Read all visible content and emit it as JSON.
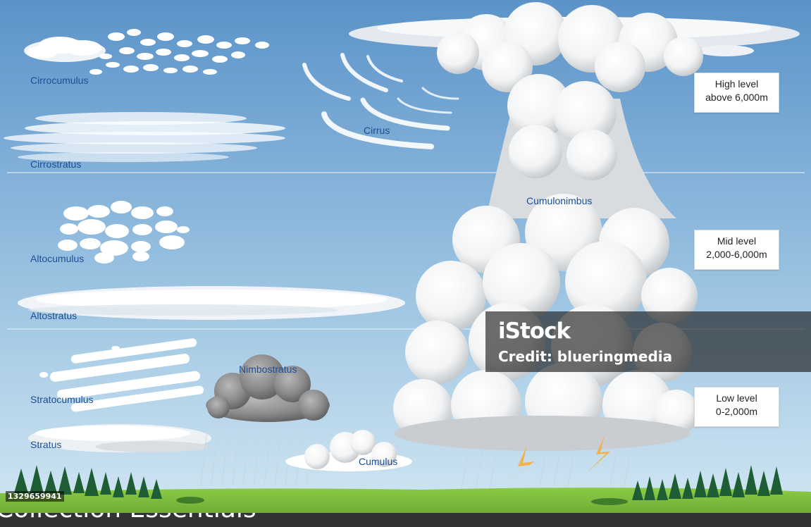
{
  "cloud_labels": {
    "cirrocumulus": "Cirrocumulus",
    "cirrostratus": "Cirrostratus",
    "cirrus": "Cirrus",
    "cumulonimbus": "Cumulonimbus",
    "altocumulus": "Altocumulus",
    "altostratus": "Altostratus",
    "nimbostratus": "Nimbostratus",
    "stratocumulus": "Stratocumulus",
    "stratus": "Stratus",
    "cumulus": "Cumulus"
  },
  "levels": {
    "high": {
      "line1": "High level",
      "line2": "above 6,000m"
    },
    "mid": {
      "line1": "Mid level",
      "line2": "2,000-6,000m"
    },
    "low": {
      "line1": "Low level",
      "line2": "0-2,000m"
    }
  },
  "watermark": {
    "logo": "iStock",
    "credit": "Credit: blueringmedia"
  },
  "image_id": "1329659941",
  "collection_text": "Collection Essentials",
  "colors": {
    "sky_top": "#5b93c9",
    "sky_bottom": "#d2e6f2",
    "label_text": "#1d4f93",
    "cloud_white": "#ffffff",
    "cloud_shadow": "#b9bcbf",
    "storm_cloud": "#6f6f6f",
    "grass": "#7fbf3a",
    "tree": "#1f5e35",
    "lightning": "#f1b24a"
  },
  "icons": [
    "cloud-shape",
    "rain-streaks",
    "lightning-bolt",
    "pine-tree"
  ]
}
